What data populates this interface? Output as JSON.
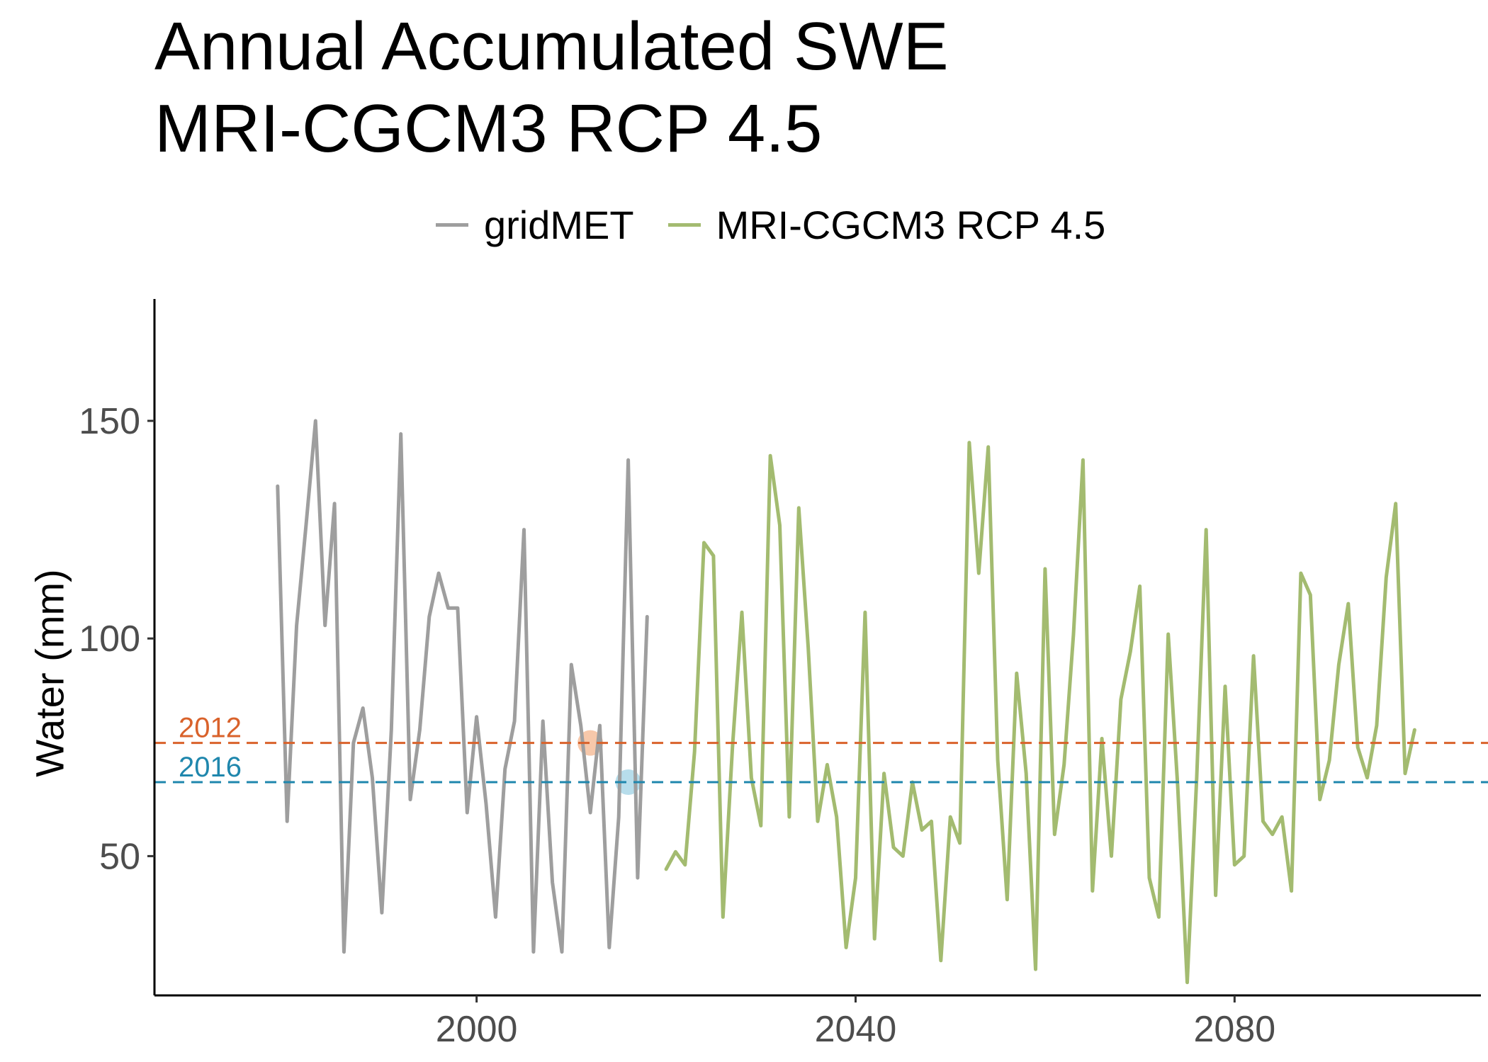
{
  "title_line1": "Annual Accumulated SWE",
  "title_line2": "MRI-CGCM3 RCP 4.5",
  "chart_data": {
    "type": "line",
    "title": "Annual Accumulated SWE MRI-CGCM3 RCP 4.5",
    "xlabel": "",
    "ylabel": "Water (mm)",
    "xlim": [
      1966,
      2106
    ],
    "ylim": [
      18,
      178
    ],
    "x_ticks": [
      2000,
      2040,
      2080
    ],
    "y_ticks": [
      50,
      100,
      150
    ],
    "grid": false,
    "legend_position": "top",
    "series": [
      {
        "name": "gridMET",
        "color": "#9e9e9e",
        "x": [
          1979,
          1980,
          1981,
          1982,
          1983,
          1984,
          1985,
          1986,
          1987,
          1988,
          1989,
          1990,
          1991,
          1992,
          1993,
          1994,
          1995,
          1996,
          1997,
          1998,
          1999,
          2000,
          2001,
          2002,
          2003,
          2004,
          2005,
          2006,
          2007,
          2008,
          2009,
          2010,
          2011,
          2012,
          2013,
          2014,
          2015,
          2016,
          2017,
          2018
        ],
        "y": [
          135,
          58,
          103,
          126,
          150,
          103,
          131,
          28,
          76,
          84,
          68,
          37,
          79,
          147,
          63,
          79,
          105,
          115,
          107,
          107,
          60,
          82,
          62,
          36,
          70,
          81,
          125,
          28,
          81,
          44,
          28,
          94,
          80,
          60,
          80,
          29,
          59,
          141,
          45,
          105
        ]
      },
      {
        "name": "MRI-CGCM3 RCP 4.5",
        "color": "#a3bb70",
        "x": [
          2020,
          2021,
          2022,
          2023,
          2024,
          2025,
          2026,
          2027,
          2028,
          2029,
          2030,
          2031,
          2032,
          2033,
          2034,
          2035,
          2036,
          2037,
          2038,
          2039,
          2040,
          2041,
          2042,
          2043,
          2044,
          2045,
          2046,
          2047,
          2048,
          2049,
          2050,
          2051,
          2052,
          2053,
          2054,
          2055,
          2056,
          2057,
          2058,
          2059,
          2060,
          2061,
          2062,
          2063,
          2064,
          2065,
          2066,
          2067,
          2068,
          2069,
          2070,
          2071,
          2072,
          2073,
          2074,
          2075,
          2076,
          2077,
          2078,
          2079,
          2080,
          2081,
          2082,
          2083,
          2084,
          2085,
          2086,
          2087,
          2088,
          2089,
          2090,
          2091,
          2092,
          2093,
          2094,
          2095,
          2096,
          2097,
          2098,
          2099
        ],
        "y": [
          47,
          51,
          48,
          74,
          122,
          119,
          36,
          75,
          106,
          68,
          57,
          142,
          126,
          59,
          130,
          98,
          58,
          71,
          59,
          29,
          45,
          106,
          31,
          69,
          52,
          50,
          67,
          56,
          58,
          26,
          59,
          53,
          145,
          115,
          144,
          72,
          40,
          92,
          69,
          24,
          116,
          55,
          71,
          101,
          141,
          42,
          77,
          50,
          86,
          97,
          112,
          45,
          36,
          101,
          66,
          21,
          68,
          125,
          41,
          89,
          48,
          50,
          96,
          58,
          55,
          59,
          42,
          115,
          110,
          63,
          72,
          94,
          108,
          75,
          68,
          80,
          114,
          131,
          69,
          79
        ]
      }
    ],
    "reference_lines": [
      {
        "label": "2012",
        "y": 76,
        "color": "#d9622b"
      },
      {
        "label": "2016",
        "y": 67,
        "color": "#1f87ad"
      }
    ],
    "highlight_points": [
      {
        "x": 2012,
        "y": 76,
        "color": "#f4b68e"
      },
      {
        "x": 2016,
        "y": 67,
        "color": "#9fd1e4"
      }
    ]
  }
}
